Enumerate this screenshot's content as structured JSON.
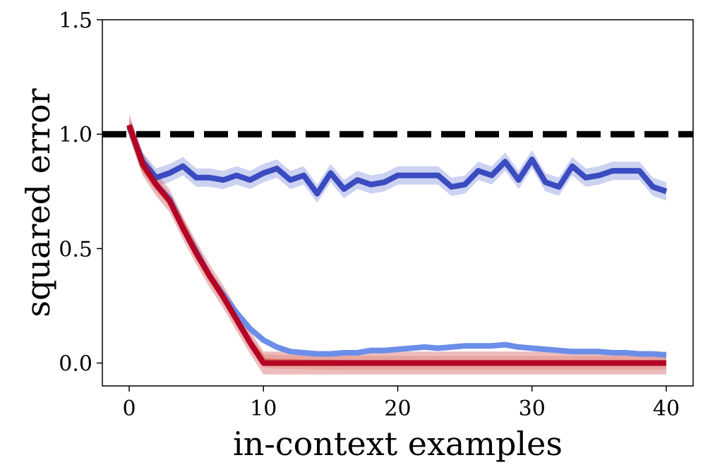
{
  "chart_data": {
    "type": "line",
    "xlabel": "in-context examples",
    "ylabel": "squared error",
    "xlim": [
      -2,
      42
    ],
    "ylim": [
      -0.1,
      1.5
    ],
    "xticks": [
      0,
      10,
      20,
      30,
      40
    ],
    "xtick_labels": [
      "0",
      "10",
      "20",
      "30",
      "40"
    ],
    "yticks": [
      0.0,
      0.5,
      1.0,
      1.5
    ],
    "ytick_labels": [
      "0.0",
      "0.5",
      "1.0",
      "1.5"
    ],
    "grid": false,
    "x": [
      0,
      1,
      2,
      3,
      4,
      5,
      6,
      7,
      8,
      9,
      10,
      11,
      12,
      13,
      14,
      15,
      16,
      17,
      18,
      19,
      20,
      21,
      22,
      23,
      24,
      25,
      26,
      27,
      28,
      29,
      30,
      31,
      32,
      33,
      34,
      35,
      36,
      37,
      38,
      39,
      40
    ],
    "reference_line": {
      "y": 1.0,
      "style": "dashed",
      "color": "#000000"
    },
    "series": [
      {
        "color": "#3b4cc0",
        "band_color": "#8f9be0",
        "values": [
          1.03,
          0.88,
          0.81,
          0.83,
          0.86,
          0.81,
          0.81,
          0.8,
          0.82,
          0.8,
          0.83,
          0.85,
          0.8,
          0.82,
          0.74,
          0.83,
          0.76,
          0.8,
          0.78,
          0.79,
          0.82,
          0.82,
          0.82,
          0.82,
          0.77,
          0.78,
          0.84,
          0.82,
          0.88,
          0.8,
          0.89,
          0.79,
          0.77,
          0.86,
          0.81,
          0.82,
          0.84,
          0.84,
          0.84,
          0.77,
          0.75
        ],
        "band": 0.04
      },
      {
        "color": "#6b8ee8",
        "band_color": "#a9bff2",
        "values": [
          1.03,
          0.87,
          0.78,
          0.72,
          0.6,
          0.49,
          0.38,
          0.3,
          0.22,
          0.15,
          0.1,
          0.07,
          0.05,
          0.045,
          0.04,
          0.04,
          0.045,
          0.045,
          0.055,
          0.055,
          0.06,
          0.065,
          0.07,
          0.065,
          0.07,
          0.075,
          0.075,
          0.075,
          0.08,
          0.07,
          0.065,
          0.06,
          0.055,
          0.05,
          0.05,
          0.05,
          0.045,
          0.045,
          0.04,
          0.04,
          0.035
        ],
        "band": 0.01
      },
      {
        "color": "#d8745a",
        "band_color": "#e8a08a",
        "values": [
          1.04,
          0.86,
          0.78,
          0.71,
          0.6,
          0.48,
          0.38,
          0.29,
          0.19,
          0.09,
          0.01,
          0.005,
          0.005,
          0.003,
          0.002,
          0.002,
          0.001,
          0.001,
          0.001,
          0.001,
          0.001,
          0.001,
          0.001,
          0.001,
          0.001,
          0.001,
          0.001,
          0.001,
          0.001,
          0.001,
          0.001,
          0.001,
          0.001,
          0.001,
          0.001,
          0.001,
          0.001,
          0.001,
          0.001,
          0.001,
          0.001
        ],
        "band": 0.03
      },
      {
        "color": "#b40426",
        "band_color": "#d86a6a",
        "values": [
          1.04,
          0.87,
          0.78,
          0.71,
          0.59,
          0.48,
          0.38,
          0.29,
          0.19,
          0.09,
          0.0,
          0.0,
          0.0,
          0.0,
          0.0,
          0.0,
          0.0,
          0.0,
          0.0,
          0.0,
          0.0,
          0.0,
          0.0,
          0.0,
          0.0,
          0.0,
          0.0,
          0.0,
          0.0,
          0.0,
          0.0,
          0.0,
          0.0,
          0.0,
          0.0,
          0.0,
          0.0,
          0.0,
          0.0,
          0.0,
          0.0
        ],
        "band": 0.05
      }
    ]
  }
}
